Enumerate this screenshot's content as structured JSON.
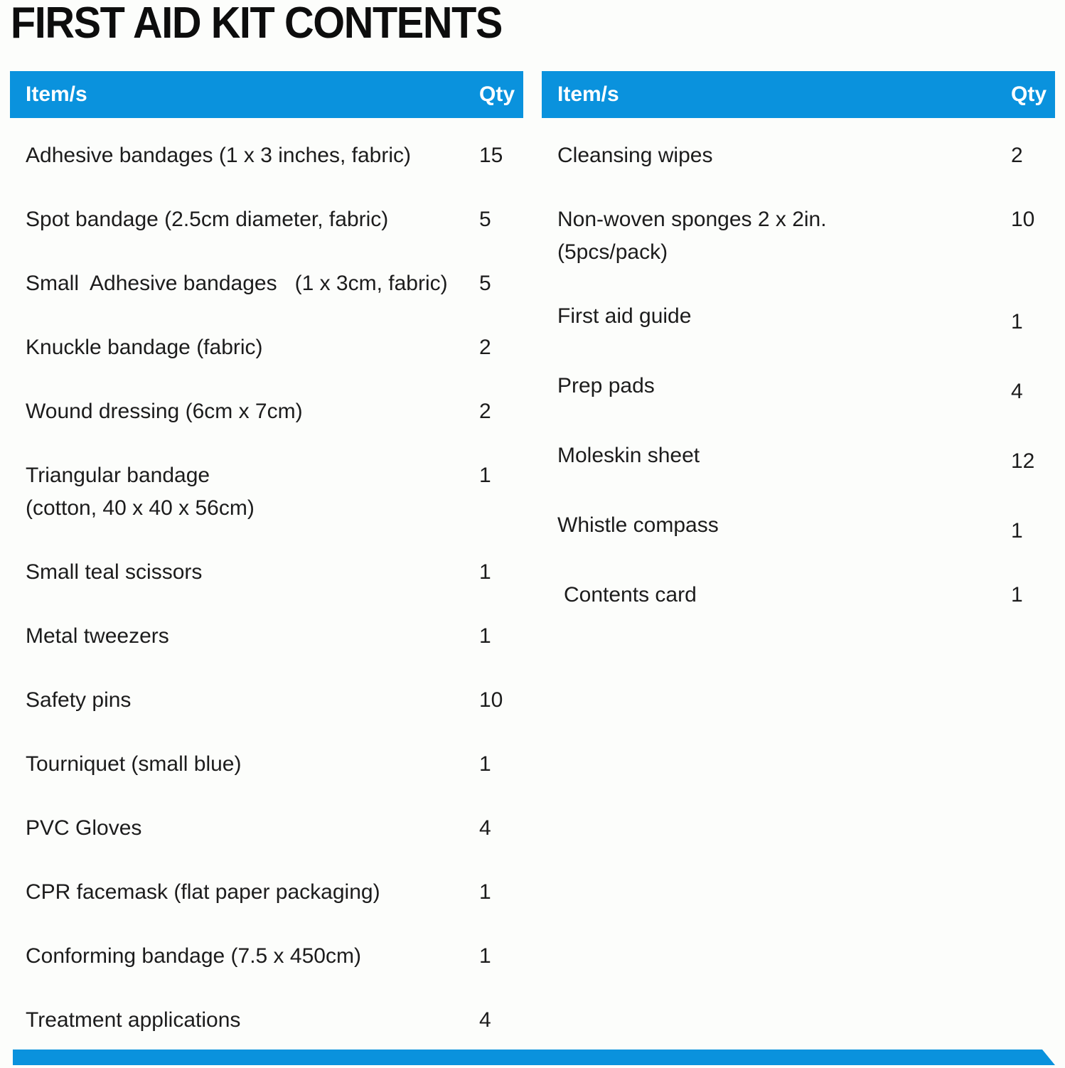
{
  "page": {
    "title": "FIRST AID KIT CONTENTS",
    "accent_color": "#0a92dd"
  },
  "tables": [
    {
      "headers": {
        "item": "Item/s",
        "qty": "Qty"
      },
      "rows": [
        {
          "item": "Adhesive bandages (1 x 3 inches, fabric)",
          "qty": "15"
        },
        {
          "item": "Spot bandage (2.5cm diameter, fabric)",
          "qty": "5"
        },
        {
          "item": "Small  Adhesive bandages   (1 x 3cm, fabric)",
          "qty": "5"
        },
        {
          "item": "Knuckle bandage (fabric)",
          "qty": "2"
        },
        {
          "item": "Wound dressing (6cm x 7cm)",
          "qty": "2"
        },
        {
          "item": "Triangular bandage\n(cotton, 40 x 40 x 56cm)",
          "qty": "1"
        },
        {
          "item": "Small teal scissors",
          "qty": "1"
        },
        {
          "item": "Metal tweezers",
          "qty": "1"
        },
        {
          "item": "Safety pins",
          "qty": "10"
        },
        {
          "item": "Tourniquet (small blue)",
          "qty": "1"
        },
        {
          "item": "PVC Gloves",
          "qty": "4"
        },
        {
          "item": "CPR facemask (flat paper packaging)",
          "qty": "1"
        },
        {
          "item": "Conforming bandage (7.5 x 450cm)",
          "qty": "1"
        },
        {
          "item": "Treatment applications",
          "qty": "4"
        }
      ]
    },
    {
      "headers": {
        "item": "Item/s",
        "qty": "Qty"
      },
      "rows": [
        {
          "item": "Cleansing wipes",
          "qty": "2"
        },
        {
          "item": "Non-woven sponges 2 x 2in.\n(5pcs/pack)",
          "qty": "10"
        },
        {
          "item": "First aid guide",
          "qty": "1"
        },
        {
          "item": "Prep pads",
          "qty": "4"
        },
        {
          "item": "Moleskin sheet",
          "qty": "12"
        },
        {
          "item": "Whistle compass",
          "qty": "1"
        },
        {
          "item": "Contents card",
          "qty": "1"
        }
      ]
    }
  ]
}
